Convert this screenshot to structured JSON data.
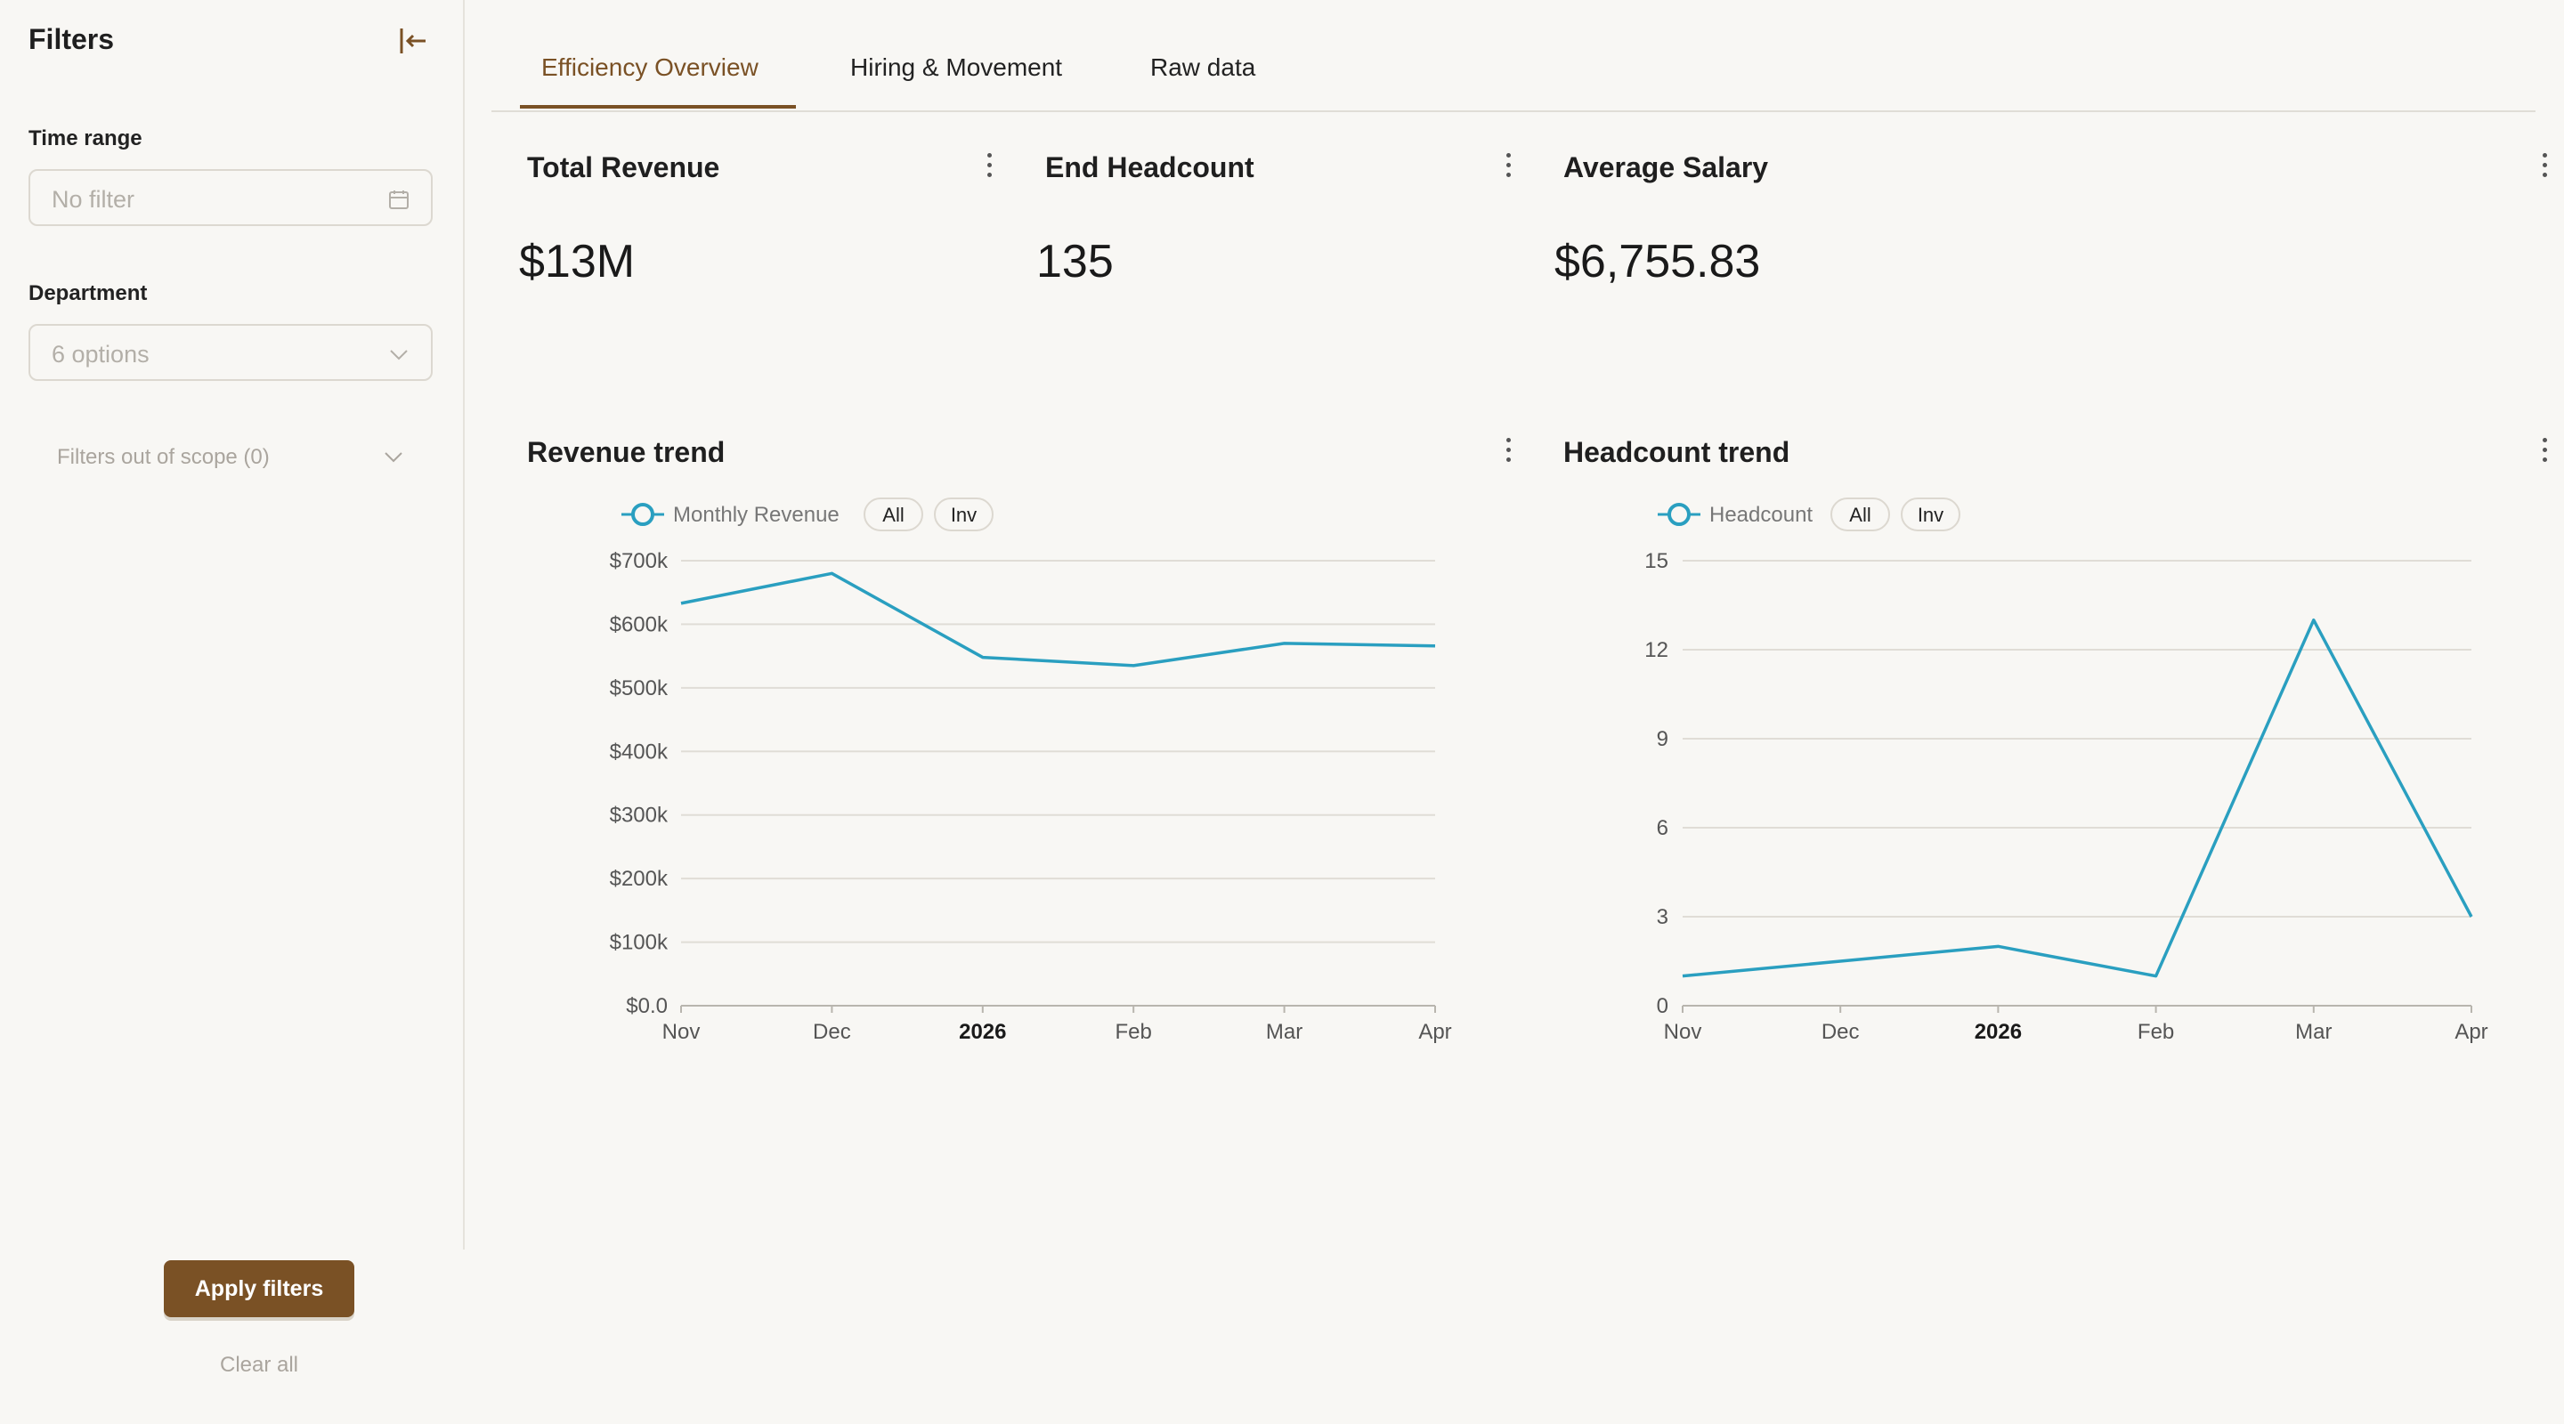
{
  "sidebar": {
    "title": "Filters",
    "time_range": {
      "label": "Time range",
      "placeholder": "No filter"
    },
    "department": {
      "label": "Department",
      "placeholder": "6 options"
    },
    "out_of_scope": "Filters out of scope (0)",
    "apply_label": "Apply filters",
    "clear_label": "Clear all"
  },
  "tabs": [
    {
      "label": "Efficiency Overview",
      "active": true
    },
    {
      "label": "Hiring & Movement",
      "active": false
    },
    {
      "label": "Raw data",
      "active": false
    }
  ],
  "kpis": [
    {
      "title": "Total Revenue",
      "value": "$13M"
    },
    {
      "title": "End Headcount",
      "value": "135"
    },
    {
      "title": "Average Salary",
      "value": "$6,755.83"
    }
  ],
  "colors": {
    "accent": "#7a5125",
    "series": "#2a9fc0"
  },
  "chart_data": [
    {
      "type": "line",
      "title": "Revenue trend",
      "x": [
        "Nov",
        "Dec",
        "2026",
        "Feb",
        "Mar",
        "Apr"
      ],
      "series": [
        {
          "name": "Monthly Revenue",
          "values": [
            633000,
            680000,
            548000,
            535000,
            570000,
            566000
          ]
        }
      ],
      "ylim": [
        0,
        700000
      ],
      "yticks": [
        0,
        100000,
        200000,
        300000,
        400000,
        500000,
        600000,
        700000
      ],
      "ytick_labels": [
        "$0.0",
        "$100k",
        "$200k",
        "$300k",
        "$400k",
        "$500k",
        "$600k",
        "$700k"
      ],
      "legend_buttons": [
        "All",
        "Inv"
      ],
      "grid": true,
      "legend_position": "top-left"
    },
    {
      "type": "line",
      "title": "Headcount trend",
      "x": [
        "Nov",
        "Dec",
        "2026",
        "Feb",
        "Mar",
        "Apr"
      ],
      "series": [
        {
          "name": "Headcount",
          "values": [
            1,
            1.5,
            2,
            1,
            13,
            3
          ]
        }
      ],
      "ylim": [
        0,
        15
      ],
      "yticks": [
        0,
        3,
        6,
        9,
        12,
        15
      ],
      "ytick_labels": [
        "0",
        "3",
        "6",
        "9",
        "12",
        "15"
      ],
      "legend_buttons": [
        "All",
        "Inv"
      ],
      "grid": true,
      "legend_position": "top-left"
    }
  ]
}
